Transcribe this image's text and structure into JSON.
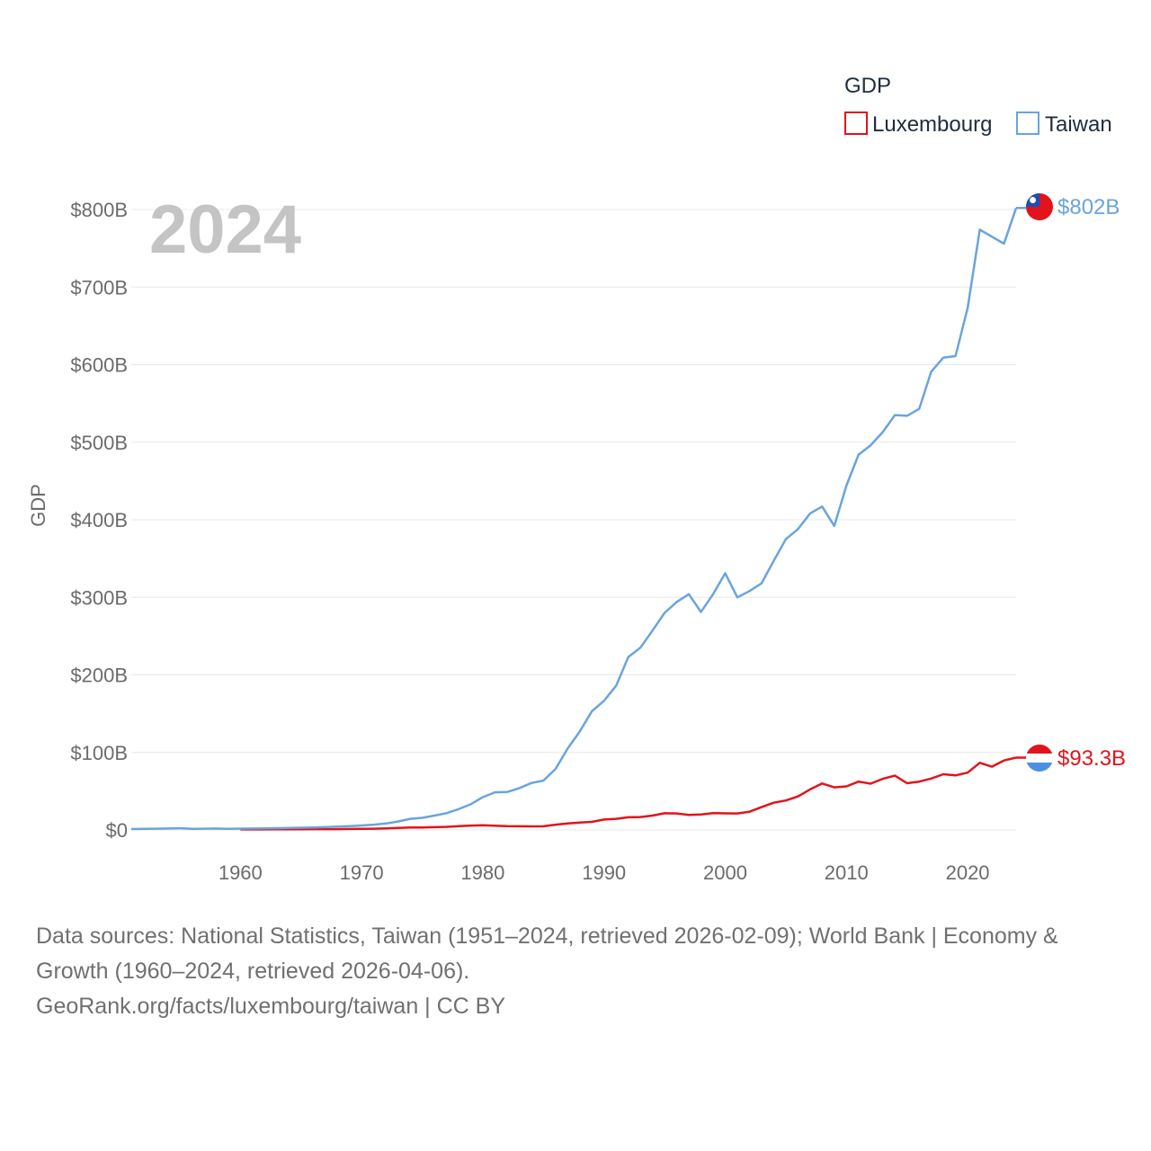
{
  "chart_data": {
    "type": "line",
    "title": "",
    "year_label": "2024",
    "legend_title": "GDP",
    "ylabel": "GDP",
    "xlabel": "",
    "ylim": [
      0,
      820
    ],
    "xlim": [
      1951,
      2024
    ],
    "y_ticks": [
      0,
      100,
      200,
      300,
      400,
      500,
      600,
      700,
      800
    ],
    "y_tick_labels": [
      "$0",
      "$100B",
      "$200B",
      "$300B",
      "$400B",
      "$500B",
      "$600B",
      "$700B",
      "$800B"
    ],
    "x_ticks": [
      1960,
      1970,
      1980,
      1990,
      2000,
      2010,
      2020
    ],
    "x_tick_labels": [
      "1960",
      "1970",
      "1980",
      "1990",
      "2000",
      "2010",
      "2020"
    ],
    "units": "billion USD",
    "series": [
      {
        "name": "Luxembourg",
        "color": "#e3131b",
        "end_label": "$93.3B",
        "x": [
          1960,
          1961,
          1962,
          1963,
          1964,
          1965,
          1966,
          1967,
          1968,
          1969,
          1970,
          1971,
          1972,
          1973,
          1974,
          1975,
          1976,
          1977,
          1978,
          1979,
          1980,
          1981,
          1982,
          1983,
          1984,
          1985,
          1986,
          1987,
          1988,
          1989,
          1990,
          1991,
          1992,
          1993,
          1994,
          1995,
          1996,
          1997,
          1998,
          1999,
          2000,
          2001,
          2002,
          2003,
          2004,
          2005,
          2006,
          2007,
          2008,
          2009,
          2010,
          2011,
          2012,
          2013,
          2014,
          2015,
          2016,
          2017,
          2018,
          2019,
          2020,
          2021,
          2022,
          2023,
          2024
        ],
        "values": [
          0.7,
          0.7,
          0.7,
          0.8,
          0.9,
          0.9,
          1.0,
          1.0,
          1.1,
          1.3,
          1.5,
          1.6,
          2.0,
          2.6,
          3.1,
          3.3,
          3.6,
          4.0,
          4.9,
          5.7,
          6.2,
          5.4,
          4.9,
          4.7,
          4.6,
          4.7,
          6.8,
          8.5,
          9.5,
          10.4,
          13.4,
          14.4,
          16.4,
          16.7,
          18.5,
          21.6,
          21.3,
          19.4,
          20.0,
          21.7,
          21.4,
          21.3,
          23.5,
          29.5,
          35.1,
          38.0,
          43.2,
          52.3,
          59.9,
          54.9,
          56.2,
          62.4,
          59.7,
          66.0,
          70.0,
          60.3,
          62.4,
          66.3,
          71.9,
          70.4,
          74.0,
          86.6,
          81.6,
          89.6,
          93.3
        ]
      },
      {
        "name": "Taiwan",
        "color": "#69a4de",
        "end_label": "$802B",
        "x": [
          1951,
          1952,
          1953,
          1954,
          1955,
          1956,
          1957,
          1958,
          1959,
          1960,
          1961,
          1962,
          1963,
          1964,
          1965,
          1966,
          1967,
          1968,
          1969,
          1970,
          1971,
          1972,
          1973,
          1974,
          1975,
          1976,
          1977,
          1978,
          1979,
          1980,
          1981,
          1982,
          1983,
          1984,
          1985,
          1986,
          1987,
          1988,
          1989,
          1990,
          1991,
          1992,
          1993,
          1994,
          1995,
          1996,
          1997,
          1998,
          1999,
          2000,
          2001,
          2002,
          2003,
          2004,
          2005,
          2006,
          2007,
          2008,
          2009,
          2010,
          2011,
          2012,
          2013,
          2014,
          2015,
          2016,
          2017,
          2018,
          2019,
          2020,
          2021,
          2022,
          2023,
          2024
        ],
        "values": [
          1.2,
          1.4,
          1.6,
          1.9,
          2.3,
          1.4,
          1.6,
          1.8,
          1.5,
          1.7,
          1.8,
          2.0,
          2.3,
          2.6,
          2.9,
          3.3,
          3.8,
          4.3,
          5.0,
          5.8,
          6.8,
          8.3,
          10.9,
          14.4,
          15.6,
          18.6,
          21.7,
          26.8,
          33.2,
          42.3,
          48.6,
          48.9,
          53.8,
          60.5,
          63.7,
          78.7,
          105.0,
          127.0,
          153.0,
          166.6,
          186.0,
          223.0,
          235.0,
          257.0,
          280.0,
          294.0,
          304.0,
          281.0,
          304.0,
          331.0,
          300.0,
          308.0,
          318.0,
          347.0,
          375.0,
          388.0,
          408.0,
          417.0,
          392.0,
          444.0,
          484.0,
          496.0,
          513.0,
          535.0,
          534.0,
          543.0,
          591.0,
          609.0,
          611.0,
          673.0,
          774.0,
          765.0,
          756.0,
          802.0
        ]
      }
    ]
  },
  "footer": {
    "line1": "Data sources: National Statistics, Taiwan (1951–2024, retrieved 2026-02-09); World Bank | Economy &",
    "line2": "Growth (1960–2024, retrieved 2026-04-06).",
    "line3": "GeoRank.org/facts/luxembourg/taiwan | CC BY"
  }
}
